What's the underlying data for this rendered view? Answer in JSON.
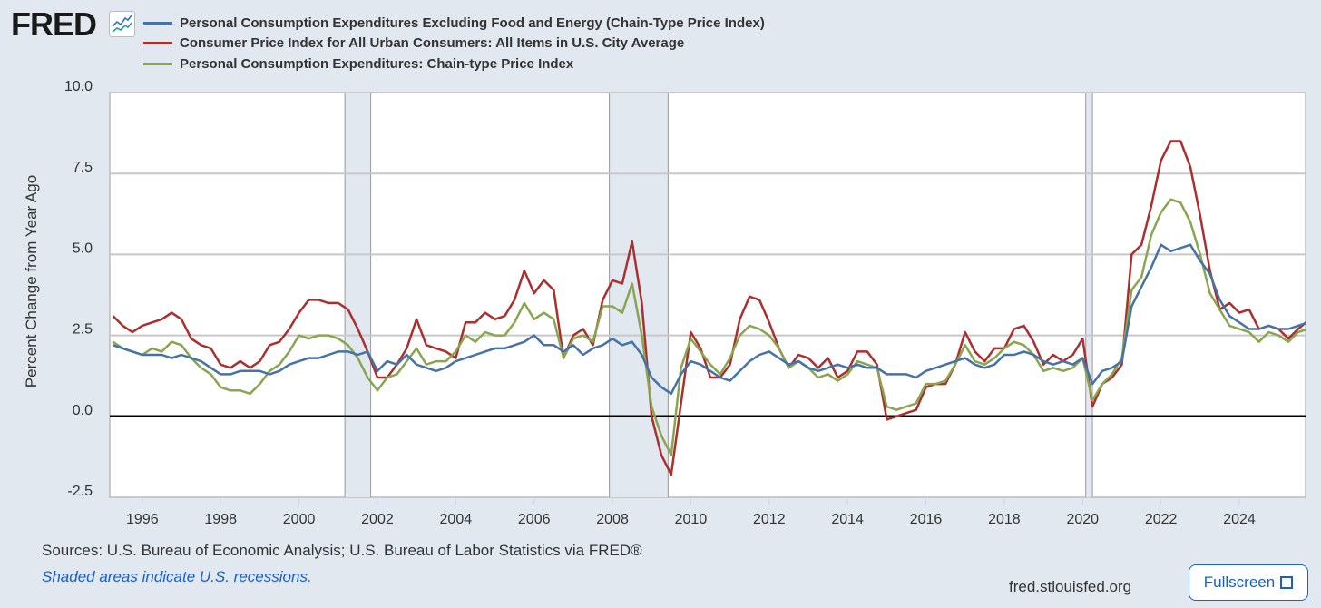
{
  "header": {
    "logo": "FRED",
    "legend": [
      {
        "label": "Personal Consumption Expenditures Excluding Food and Energy (Chain-Type Price Index)",
        "color": "#4572a7"
      },
      {
        "label": "Consumer Price Index for All Urban Consumers: All Items in U.S. City Average",
        "color": "#aa2f2f"
      },
      {
        "label": "Personal Consumption Expenditures: Chain-type Price Index",
        "color": "#89a54e"
      }
    ]
  },
  "footer": {
    "sources": "Sources: U.S. Bureau of Economic Analysis; U.S. Bureau of Labor Statistics via FRED®",
    "shaded_note": "Shaded areas indicate U.S. recessions.",
    "site": "fred.stlouisfed.org",
    "fullscreen_label": "Fullscreen"
  },
  "chart_data": {
    "type": "line",
    "title": "",
    "xlabel": "",
    "ylabel": "Percent Change from Year Ago",
    "xlim": [
      1995.17,
      2025.69
    ],
    "ylim": [
      -2.5,
      10.0
    ],
    "yticks": [
      -2.5,
      0.0,
      2.5,
      5.0,
      7.5,
      10.0
    ],
    "ytick_labels": [
      "-2.5",
      "0.0",
      "2.5",
      "5.0",
      "7.5",
      "10.0"
    ],
    "xticks": [
      1996,
      1998,
      2000,
      2002,
      2004,
      2006,
      2008,
      2010,
      2012,
      2014,
      2016,
      2018,
      2020,
      2022,
      2024
    ],
    "xtick_labels": [
      "1996",
      "1998",
      "2000",
      "2002",
      "2004",
      "2006",
      "2008",
      "2010",
      "2012",
      "2014",
      "2016",
      "2018",
      "2020",
      "2022",
      "2024"
    ],
    "grid": true,
    "legend_position": "top",
    "recessions": [
      [
        2001.17,
        2001.83
      ],
      [
        2007.92,
        2009.42
      ],
      [
        2020.08,
        2020.25
      ]
    ],
    "x_start": 1995.25,
    "x_step": 0.25,
    "series": [
      {
        "name": "Personal Consumption Expenditures Excluding Food and Energy (Chain-Type Price Index)",
        "color": "#4572a7",
        "values": [
          2.2,
          2.1,
          2.0,
          1.9,
          1.9,
          1.9,
          1.8,
          1.9,
          1.8,
          1.7,
          1.5,
          1.3,
          1.3,
          1.4,
          1.4,
          1.4,
          1.3,
          1.4,
          1.6,
          1.7,
          1.8,
          1.8,
          1.9,
          2.0,
          2.0,
          1.9,
          2.0,
          1.4,
          1.7,
          1.6,
          1.9,
          1.6,
          1.5,
          1.4,
          1.5,
          1.7,
          1.8,
          1.9,
          2.0,
          2.1,
          2.1,
          2.2,
          2.3,
          2.5,
          2.2,
          2.2,
          2.0,
          2.2,
          1.9,
          2.1,
          2.2,
          2.4,
          2.2,
          2.3,
          1.9,
          1.2,
          0.9,
          0.7,
          1.3,
          1.7,
          1.6,
          1.4,
          1.2,
          1.1,
          1.4,
          1.7,
          1.9,
          2.0,
          1.8,
          1.6,
          1.7,
          1.5,
          1.4,
          1.5,
          1.6,
          1.5,
          1.6,
          1.5,
          1.5,
          1.3,
          1.3,
          1.3,
          1.2,
          1.4,
          1.5,
          1.6,
          1.7,
          1.8,
          1.6,
          1.5,
          1.6,
          1.9,
          1.9,
          2.0,
          1.9,
          1.7,
          1.6,
          1.7,
          1.6,
          1.8,
          1.0,
          1.4,
          1.5,
          1.7,
          3.4,
          4.0,
          4.6,
          5.3,
          5.1,
          5.2,
          5.3,
          4.8,
          4.4,
          3.6,
          3.1,
          2.9,
          2.7,
          2.7,
          2.8,
          2.7,
          2.7,
          2.8,
          2.9
        ]
      },
      {
        "name": "Consumer Price Index for All Urban Consumers: All Items in U.S. City Average",
        "color": "#aa2f2f",
        "values": [
          3.1,
          2.8,
          2.6,
          2.8,
          2.9,
          3.0,
          3.2,
          3.0,
          2.4,
          2.2,
          2.1,
          1.6,
          1.5,
          1.7,
          1.5,
          1.7,
          2.2,
          2.3,
          2.7,
          3.2,
          3.6,
          3.6,
          3.5,
          3.5,
          3.3,
          2.7,
          2.0,
          1.2,
          1.2,
          1.6,
          2.1,
          3.0,
          2.2,
          2.1,
          2.0,
          1.8,
          2.9,
          2.9,
          3.2,
          3.0,
          3.1,
          3.6,
          4.5,
          3.8,
          4.2,
          3.9,
          1.8,
          2.5,
          2.7,
          2.2,
          3.6,
          4.2,
          4.1,
          5.4,
          3.5,
          0.0,
          -1.2,
          -1.8,
          0.4,
          2.6,
          2.1,
          1.2,
          1.2,
          1.6,
          3.0,
          3.7,
          3.6,
          2.9,
          2.1,
          1.5,
          1.9,
          1.8,
          1.5,
          1.8,
          1.2,
          1.4,
          2.0,
          2.0,
          1.6,
          -0.1,
          0.0,
          0.1,
          0.2,
          0.9,
          1.0,
          1.0,
          1.6,
          2.6,
          2.0,
          1.7,
          2.1,
          2.1,
          2.7,
          2.8,
          2.3,
          1.6,
          1.9,
          1.7,
          1.9,
          2.4,
          0.3,
          1.0,
          1.2,
          1.6,
          5.0,
          5.3,
          6.5,
          7.9,
          8.5,
          8.5,
          7.7,
          6.2,
          4.5,
          3.3,
          3.5,
          3.2,
          3.3,
          2.7,
          2.8,
          2.7,
          2.4,
          2.7,
          2.95
        ]
      },
      {
        "name": "Personal Consumption Expenditures: Chain-type Price Index",
        "color": "#89a54e",
        "values": [
          2.3,
          2.1,
          2.0,
          1.9,
          2.1,
          2.0,
          2.3,
          2.2,
          1.8,
          1.5,
          1.3,
          0.9,
          0.8,
          0.8,
          0.7,
          1.0,
          1.4,
          1.6,
          2.0,
          2.5,
          2.4,
          2.5,
          2.5,
          2.4,
          2.2,
          1.8,
          1.2,
          0.8,
          1.2,
          1.3,
          1.7,
          2.1,
          1.6,
          1.7,
          1.7,
          2.0,
          2.5,
          2.3,
          2.6,
          2.5,
          2.5,
          2.9,
          3.5,
          3.0,
          3.2,
          3.0,
          1.8,
          2.4,
          2.5,
          2.3,
          3.4,
          3.4,
          3.2,
          4.1,
          2.5,
          0.3,
          -0.6,
          -1.2,
          1.5,
          2.4,
          2.0,
          1.6,
          1.3,
          1.8,
          2.5,
          2.8,
          2.7,
          2.5,
          2.1,
          1.5,
          1.7,
          1.5,
          1.2,
          1.3,
          1.1,
          1.3,
          1.7,
          1.6,
          1.5,
          0.3,
          0.2,
          0.3,
          0.4,
          1.0,
          1.0,
          1.1,
          1.6,
          2.2,
          1.7,
          1.6,
          1.8,
          2.1,
          2.3,
          2.2,
          1.9,
          1.4,
          1.5,
          1.4,
          1.5,
          1.8,
          0.5,
          1.0,
          1.3,
          1.8,
          3.9,
          4.3,
          5.6,
          6.3,
          6.7,
          6.6,
          6.0,
          5.0,
          3.8,
          3.3,
          2.8,
          2.7,
          2.6,
          2.3,
          2.6,
          2.5,
          2.3,
          2.6,
          2.7
        ]
      }
    ]
  }
}
